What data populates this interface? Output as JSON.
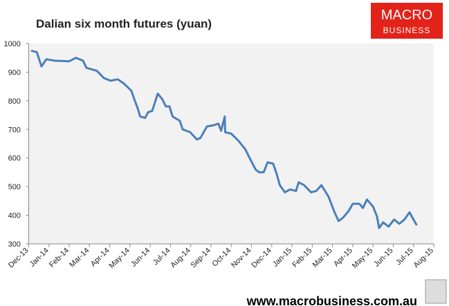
{
  "chart_data": {
    "type": "line",
    "title": "Dalian six month futures (yuan)",
    "logo": {
      "line1": "MACRO",
      "line2": "BUSINESS"
    },
    "source": "www.macrobusiness.com.au",
    "color": "#4a7ebb",
    "x": [
      0.12,
      0.4,
      0.63,
      0.87,
      1.3,
      2.0,
      2.33,
      2.68,
      2.85,
      3.36,
      3.7,
      4.04,
      4.4,
      4.7,
      5.07,
      5.24,
      5.4,
      5.5,
      5.75,
      5.9,
      6.1,
      6.37,
      6.6,
      6.77,
      6.95,
      7.1,
      7.46,
      7.6,
      7.97,
      8.3,
      8.48,
      8.8,
      9.16,
      9.37,
      9.5,
      9.68,
      9.7,
      10.0,
      10.36,
      10.7,
      10.87,
      11.2,
      11.38,
      11.6,
      11.8,
      12.07,
      12.24,
      12.4,
      12.65,
      12.9,
      13.2,
      13.33,
      13.6,
      13.94,
      14.2,
      14.45,
      14.8,
      15.1,
      15.3,
      15.5,
      15.8,
      16.0,
      16.33,
      16.5,
      16.7,
      17.0,
      17.2,
      17.3,
      17.5,
      17.77,
      18.04,
      18.3,
      18.55,
      18.8,
      19.0,
      19.16
    ],
    "values": [
      975,
      970,
      920,
      945,
      940,
      938,
      950,
      940,
      915,
      905,
      880,
      870,
      875,
      860,
      835,
      800,
      770,
      745,
      740,
      760,
      765,
      825,
      805,
      780,
      780,
      745,
      730,
      700,
      690,
      665,
      670,
      710,
      715,
      720,
      695,
      745,
      690,
      685,
      660,
      630,
      605,
      560,
      550,
      550,
      585,
      580,
      545,
      505,
      480,
      490,
      485,
      515,
      505,
      480,
      485,
      505,
      465,
      410,
      380,
      390,
      415,
      440,
      440,
      425,
      455,
      430,
      395,
      355,
      375,
      360,
      385,
      370,
      385,
      410,
      385,
      365
    ],
    "xlim": [
      0,
      20
    ],
    "xticks": [
      {
        "value": 0,
        "label": "Dec-13"
      },
      {
        "value": 1,
        "label": "Jan-14"
      },
      {
        "value": 2,
        "label": "Feb-14"
      },
      {
        "value": 3,
        "label": "Mar-14"
      },
      {
        "value": 4,
        "label": "Apr-14"
      },
      {
        "value": 5,
        "label": "May-14"
      },
      {
        "value": 6,
        "label": "Jun-14"
      },
      {
        "value": 7,
        "label": "Jul-14"
      },
      {
        "value": 8,
        "label": "Aug-14"
      },
      {
        "value": 9,
        "label": "Sep-14"
      },
      {
        "value": 10,
        "label": "Oct-14"
      },
      {
        "value": 11,
        "label": "Nov-14"
      },
      {
        "value": 12,
        "label": "Dec-14"
      },
      {
        "value": 13,
        "label": "Jan-15"
      },
      {
        "value": 14,
        "label": "Feb-15"
      },
      {
        "value": 15,
        "label": "Mar-15"
      },
      {
        "value": 16,
        "label": "Apr-15"
      },
      {
        "value": 17,
        "label": "May-15"
      },
      {
        "value": 18,
        "label": "Jun-15"
      },
      {
        "value": 19,
        "label": "Jul-15"
      },
      {
        "value": 20,
        "label": "Aug-15"
      }
    ],
    "ylim": [
      300,
      1000
    ],
    "yticks": [
      300,
      400,
      500,
      600,
      700,
      800,
      900,
      1000
    ],
    "grid": false
  }
}
